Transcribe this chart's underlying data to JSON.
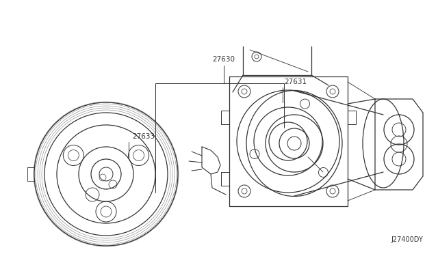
{
  "bg": "#ffffff",
  "lc": "#333333",
  "lw": 0.9,
  "font_size": 7.5,
  "diagram_code": "J27400DY",
  "labels": {
    "27630": [
      0.328,
      0.13
    ],
    "27631": [
      0.418,
      0.22
    ],
    "27633": [
      0.195,
      0.465
    ]
  }
}
